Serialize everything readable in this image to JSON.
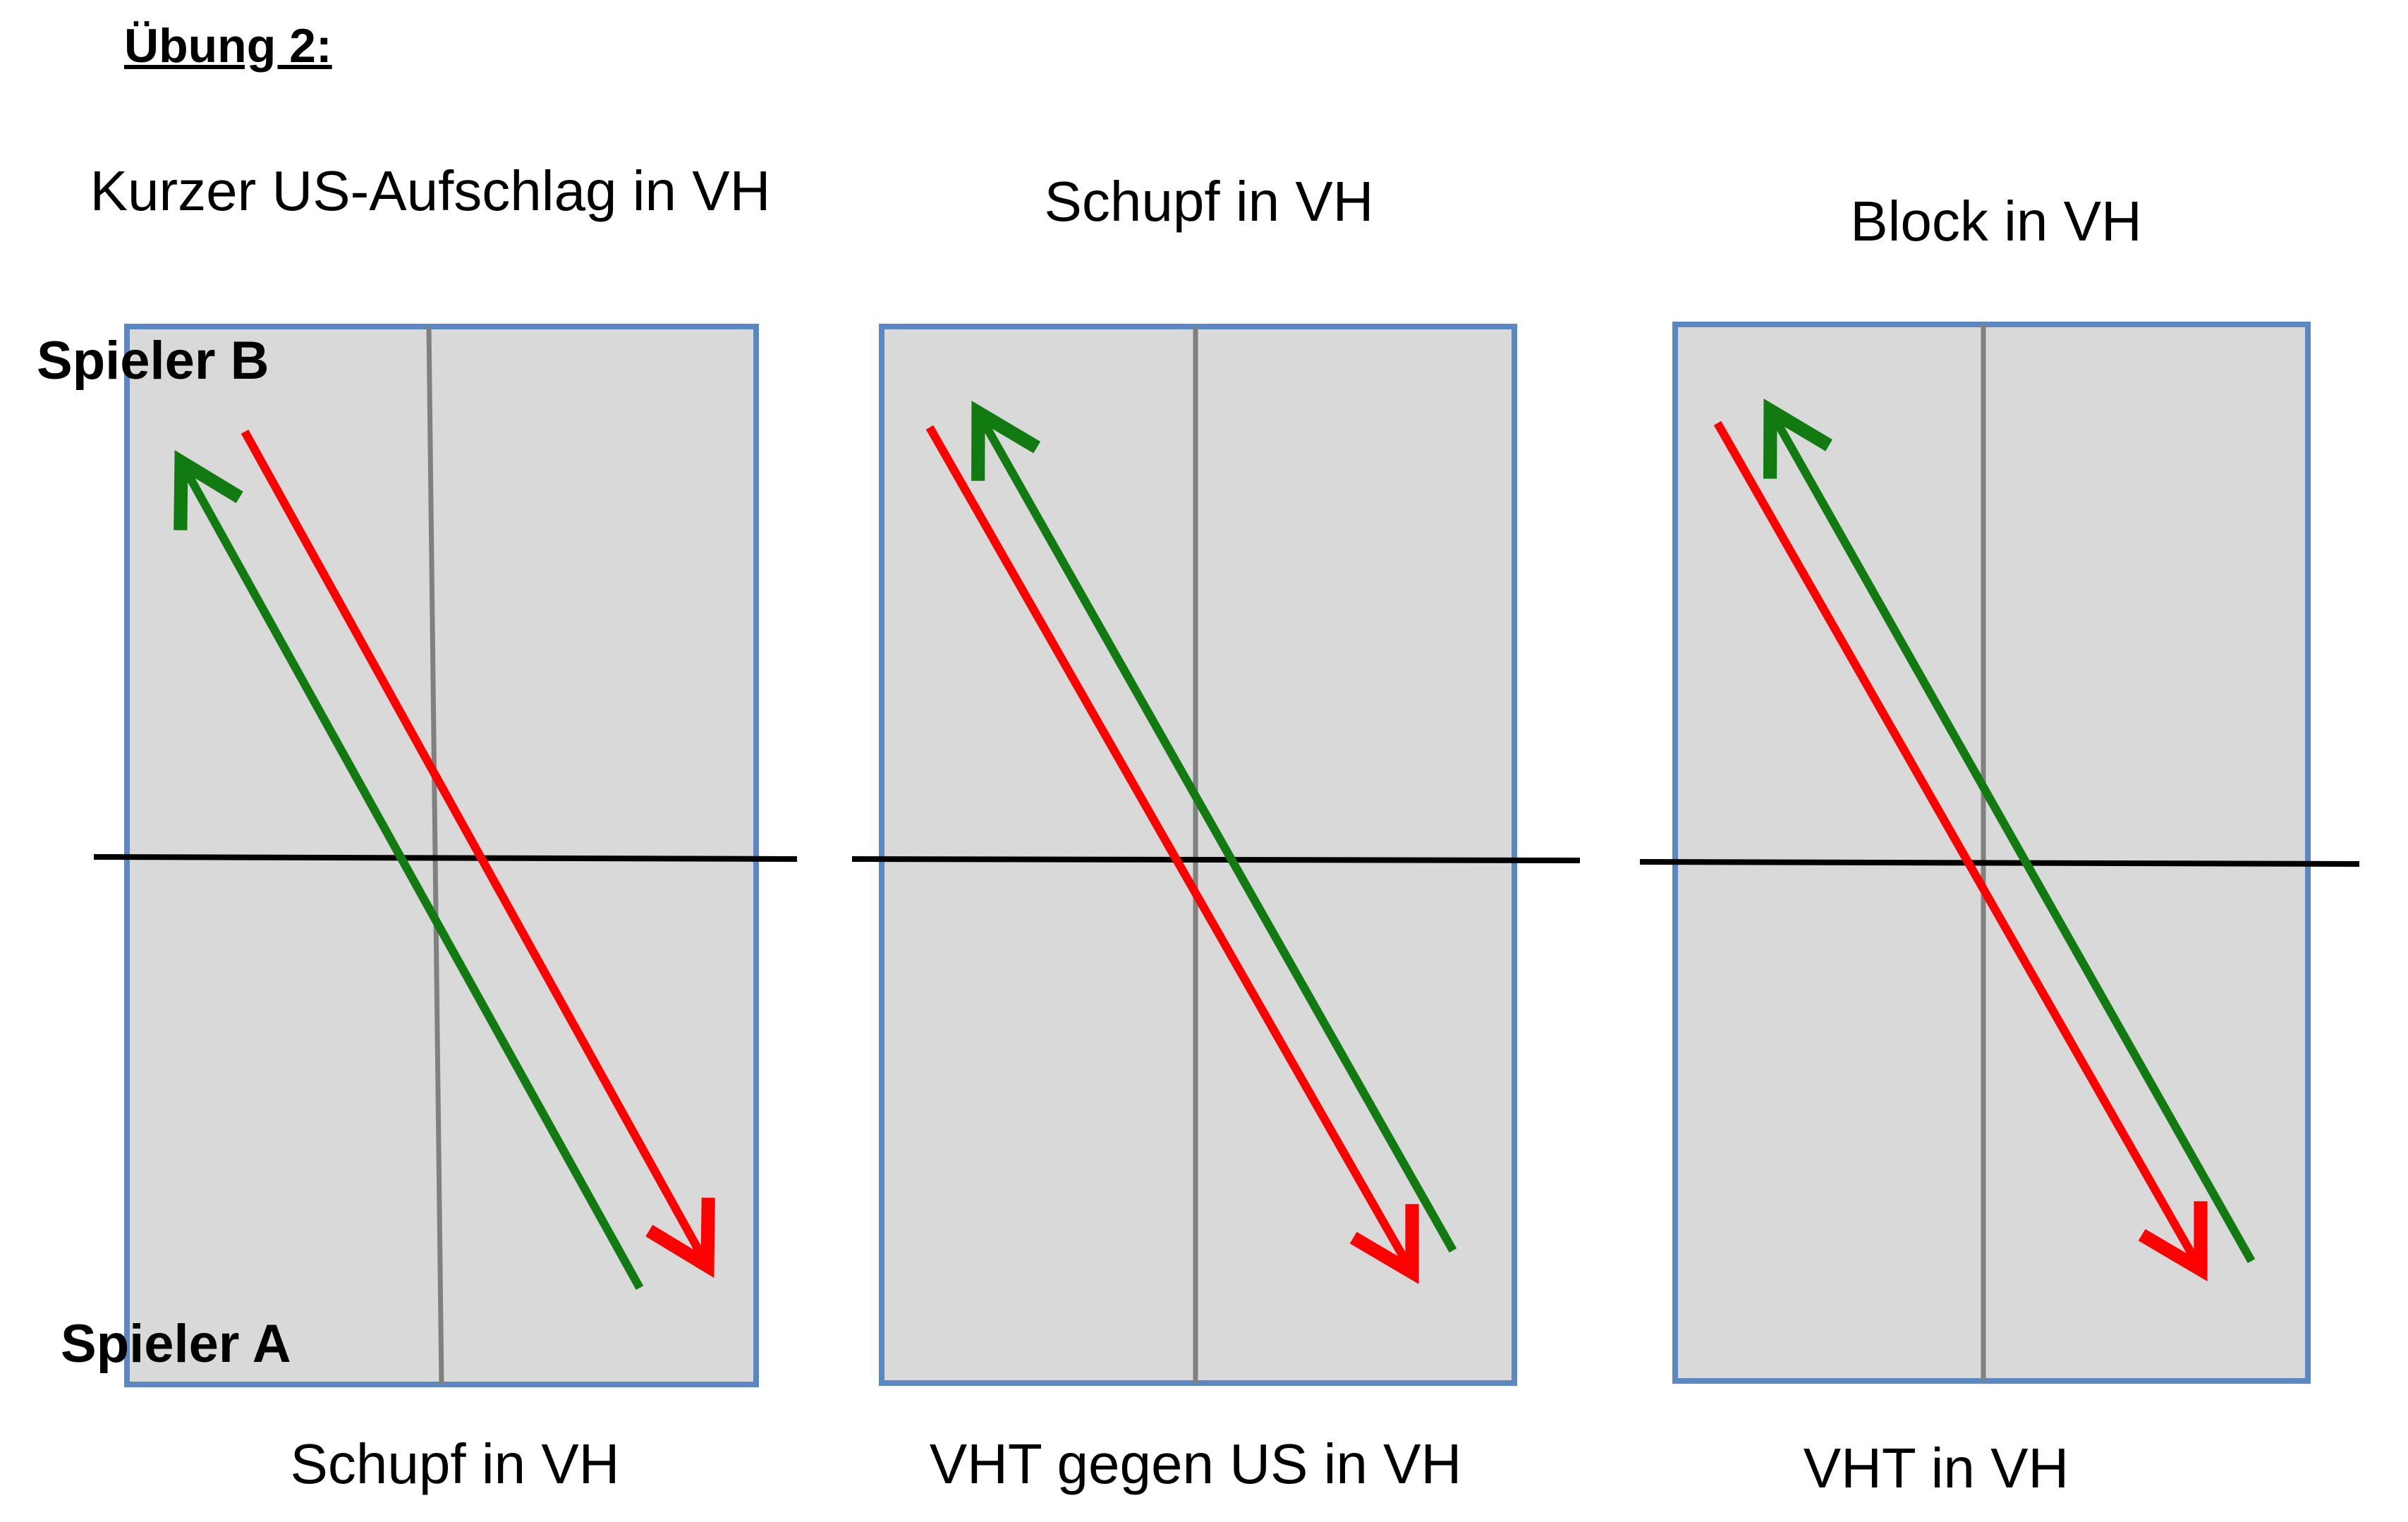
{
  "heading": "Übung 2:",
  "players": {
    "top": "Spieler B",
    "bottom": "Spieler A"
  },
  "panels": [
    {
      "top_label": "Kurzer US-Aufschlag in VH",
      "bottom_label": "Schupf in VH"
    },
    {
      "top_label": "Schupf in VH",
      "bottom_label": "VHT gegen US in VH"
    },
    {
      "top_label": "Block in VH",
      "bottom_label": "VHT in VH"
    }
  ],
  "colors": {
    "table": "#d9d9d9",
    "border": "#5b87c3",
    "center_line": "#808080",
    "net": "#000000",
    "arrow_red": "#ff0000",
    "arrow_green": "#117a11"
  }
}
